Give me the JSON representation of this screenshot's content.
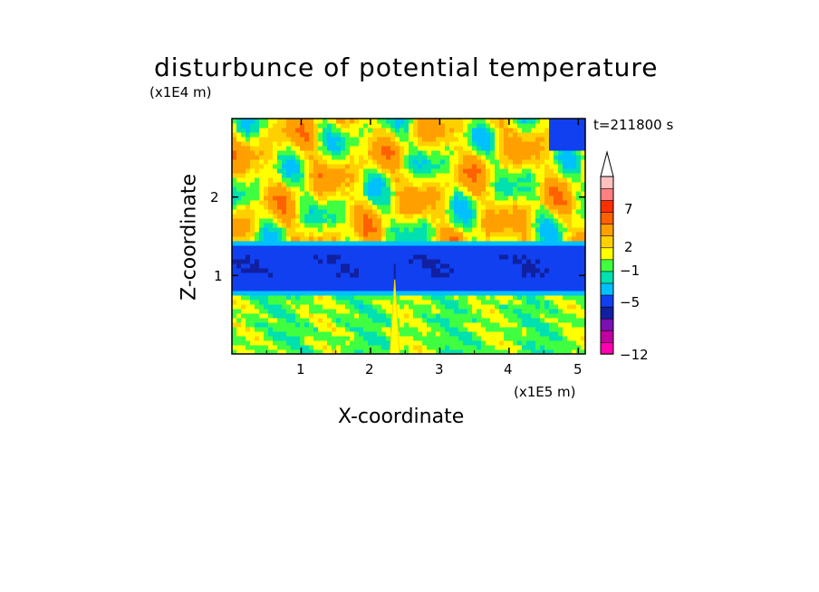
{
  "chart_data": {
    "type": "heatmap",
    "title": "disturbunce of potential temperature",
    "time_label": "t=211800 s",
    "xlabel": "X-coordinate",
    "ylabel": "Z-coordinate",
    "x_unit": "(x1E5 m)",
    "y_unit": "(x1E4 m)",
    "xlim": [
      0,
      5.1
    ],
    "ylim": [
      0,
      3.0
    ],
    "xticks": [
      "1",
      "2",
      "3",
      "4",
      "5"
    ],
    "xtick_values": [
      1,
      2,
      3,
      4,
      5
    ],
    "yticks": [
      "1",
      "2"
    ],
    "ytick_values": [
      1,
      2
    ],
    "colorbar": {
      "levels": [
        -12,
        -11,
        -9,
        -7,
        -5,
        -3,
        -1,
        0,
        1,
        2,
        3,
        5,
        7,
        8,
        9,
        10
      ],
      "labels": [
        "7",
        "2",
        "−1",
        "−5",
        "−12"
      ],
      "label_values": [
        7,
        2,
        -1,
        -5,
        -12
      ],
      "colors": [
        "#ff00b0",
        "#c000a0",
        "#7a10b0",
        "#1020a0",
        "#1040f0",
        "#00c0ff",
        "#00e0b0",
        "#40ff40",
        "#ffff00",
        "#ffd000",
        "#ffa000",
        "#ff6000",
        "#ff3000",
        "#ff8080",
        "#ffc0c0"
      ],
      "extend": "max"
    },
    "layers": [
      {
        "z_range": [
          0.0,
          0.75
        ],
        "dominant_value": 0.5
      },
      {
        "z_range": [
          0.75,
          0.82
        ],
        "dominant_value": -2
      },
      {
        "z_range": [
          0.82,
          1.35
        ],
        "dominant_value": -4
      },
      {
        "z_range": [
          1.35,
          1.42
        ],
        "dominant_value": -2
      },
      {
        "z_range": [
          1.42,
          3.0
        ],
        "dominant_value": 2
      }
    ]
  }
}
